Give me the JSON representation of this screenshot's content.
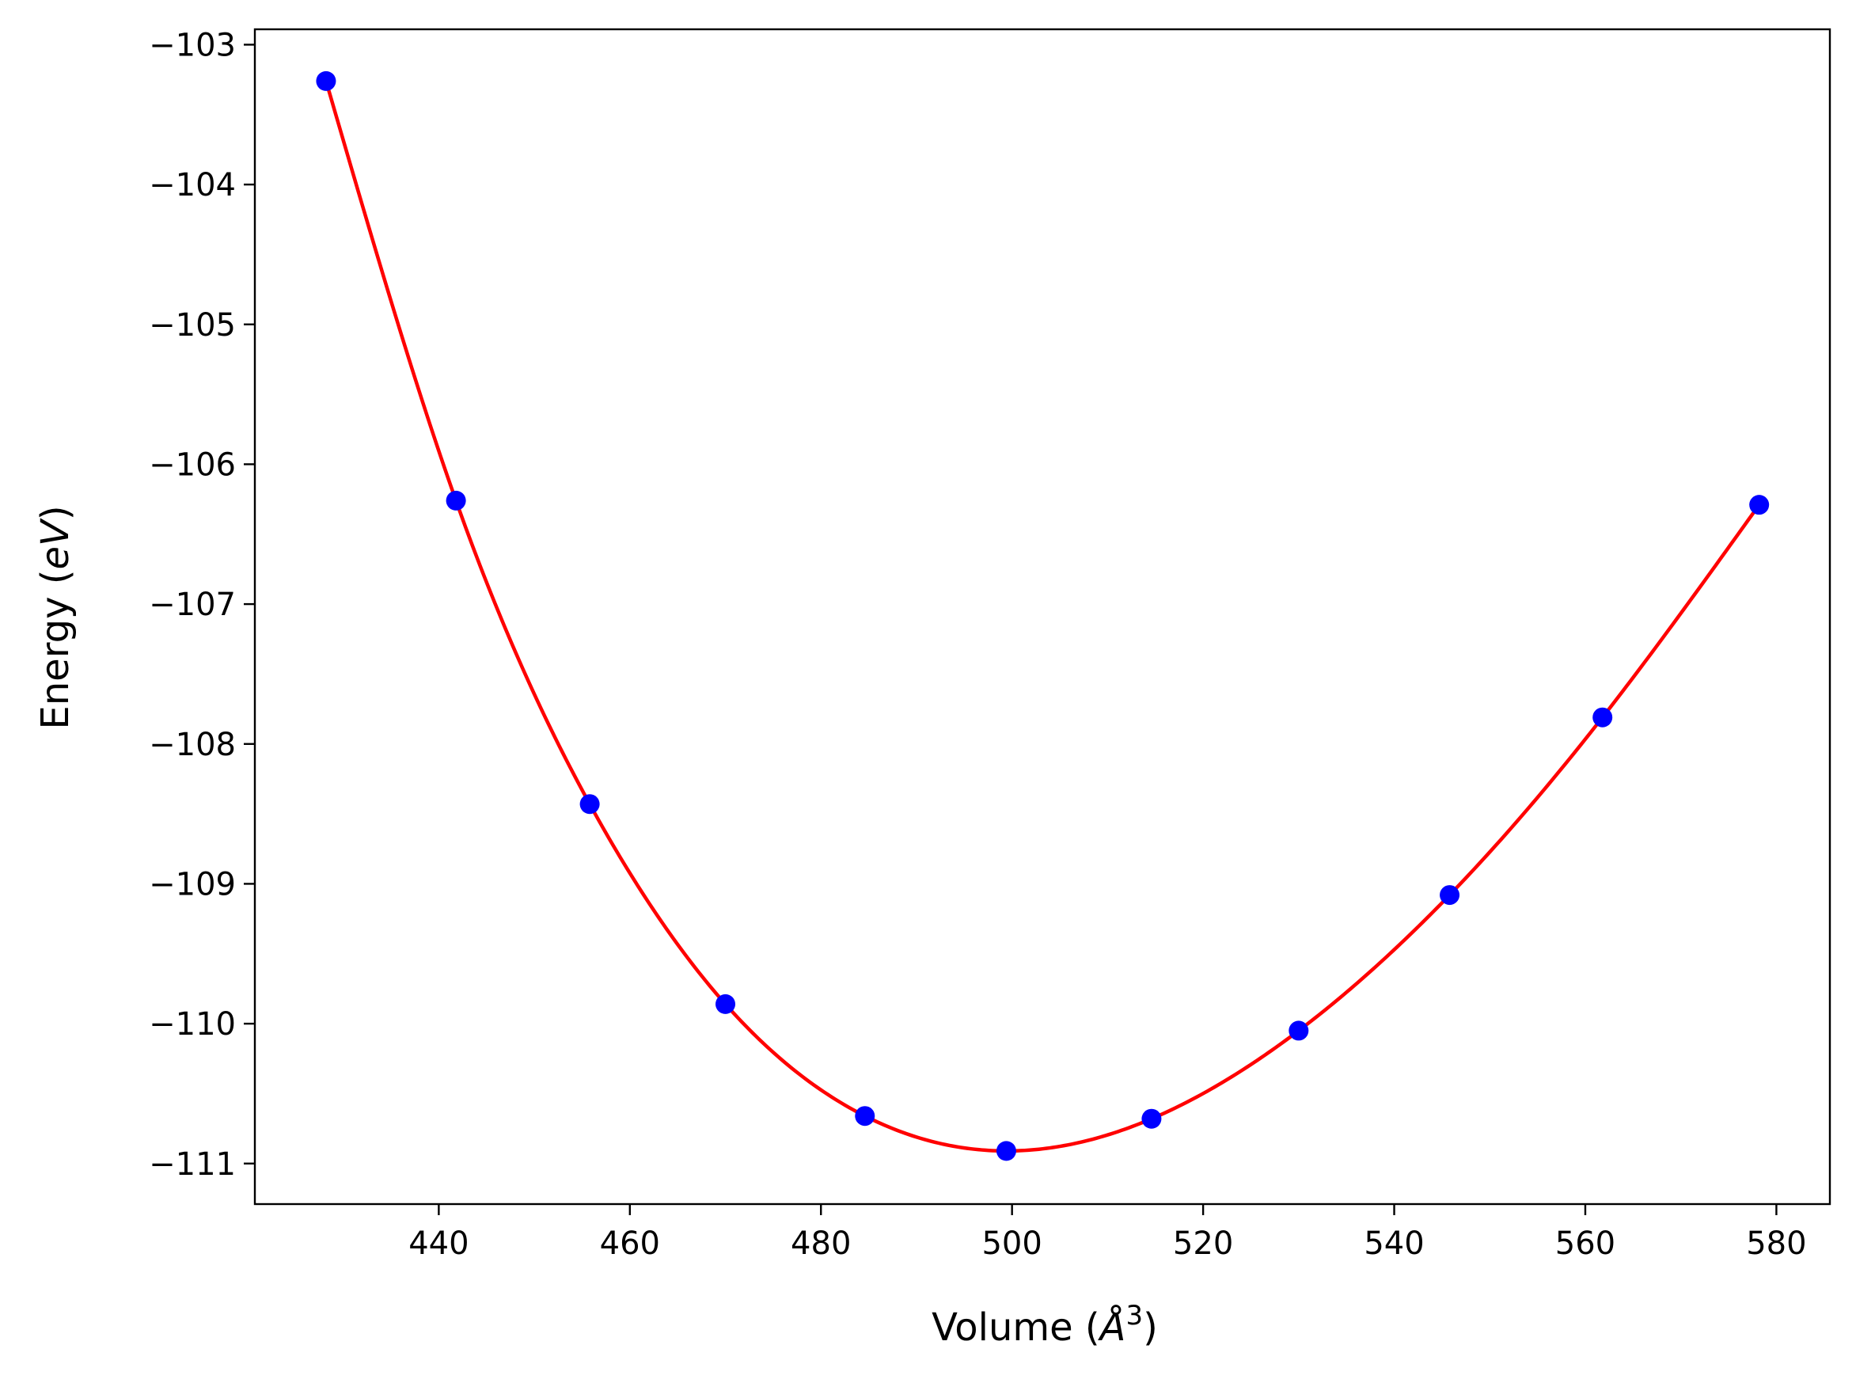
{
  "chart_data": {
    "type": "line",
    "xlabel": {
      "prefix": "Volume (",
      "unit": "Å",
      "power": "3",
      "suffix": ")"
    },
    "ylabel": {
      "prefix": "Energy (",
      "unit": "eV",
      "suffix": ")"
    },
    "xlim": [
      420.75,
      585.6
    ],
    "ylim": [
      -111.29,
      -102.89
    ],
    "xticks": [
      440,
      460,
      480,
      500,
      520,
      540,
      560,
      580
    ],
    "yticks": [
      -111,
      -110,
      -109,
      -108,
      -107,
      -106,
      -105,
      -104,
      -103
    ],
    "grid": false,
    "legend": null,
    "series": [
      {
        "kind": "scatter",
        "color": "#0000ff",
        "x": [
          428.2,
          441.8,
          455.8,
          470.0,
          484.6,
          499.4,
          514.6,
          530.0,
          545.8,
          561.8,
          578.2
        ],
        "y": [
          -103.26,
          -106.26,
          -108.43,
          -109.86,
          -110.66,
          -110.91,
          -110.68,
          -110.05,
          -109.08,
          -107.81,
          -106.29
        ]
      },
      {
        "kind": "fit",
        "color": "#ff0000"
      }
    ]
  }
}
